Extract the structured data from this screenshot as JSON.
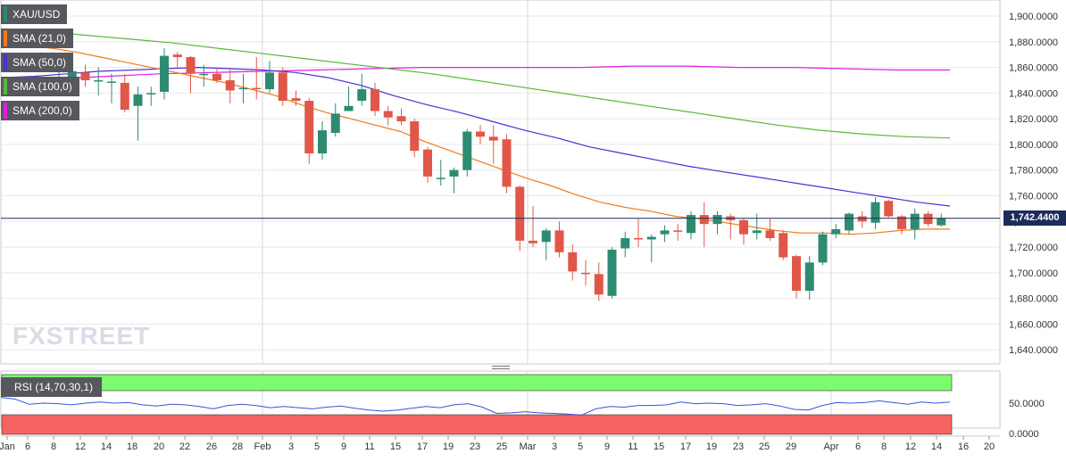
{
  "brand": {
    "logo_text": "FXSTREET"
  },
  "price_panel": {
    "y_ticks": [
      "1,900.0000",
      "1,880.0000",
      "1,860.0000",
      "1,840.0000",
      "1,820.0000",
      "1,800.0000",
      "1,780.0000",
      "1,760.0000",
      "1,740.0000",
      "1,720.0000",
      "1,700.0000",
      "1,680.0000",
      "1,660.0000",
      "1,640.0000"
    ],
    "last_price_label": "1,742.4400",
    "legend": [
      {
        "label": "XAU/USD",
        "color": "#2a8a6f"
      },
      {
        "label": "SMA (21,0)",
        "color": "#f07a1a"
      },
      {
        "label": "SMA (50,0)",
        "color": "#4b2fd6"
      },
      {
        "label": "SMA (100,0)",
        "color": "#58b83a"
      },
      {
        "label": "SMA (200,0)",
        "color": "#e020e0"
      }
    ]
  },
  "rsi_panel": {
    "label": "RSI (14,70,30,1)",
    "y_ticks": [
      "50.0000",
      "0.0000"
    ],
    "overbought_color": "#7dfb6f",
    "oversold_color": "#f86262",
    "line_color": "#3355dd"
  },
  "x_axis": {
    "ticks": [
      "Jan",
      "6",
      "8",
      "12",
      "14",
      "18",
      "20",
      "22",
      "26",
      "28",
      "Feb",
      "3",
      "5",
      "9",
      "11",
      "15",
      "17",
      "19",
      "23",
      "25",
      "Mar",
      "3",
      "5",
      "9",
      "11",
      "15",
      "17",
      "19",
      "23",
      "25",
      "29",
      "Apr",
      "6",
      "8",
      "12",
      "14",
      "16",
      "20"
    ]
  },
  "chart_data": {
    "type": "candlestick",
    "title": "XAU/USD",
    "ylim": [
      1630,
      1910
    ],
    "rsi_ylim": [
      0,
      100
    ],
    "candles": [
      {
        "o": 1851,
        "h": 1858,
        "l": 1845,
        "c": 1851
      },
      {
        "o": 1850,
        "h": 1862,
        "l": 1845,
        "c": 1857
      },
      {
        "o": 1856,
        "h": 1862,
        "l": 1845,
        "c": 1850
      },
      {
        "o": 1849,
        "h": 1860,
        "l": 1838,
        "c": 1850
      },
      {
        "o": 1848,
        "h": 1855,
        "l": 1832,
        "c": 1849
      },
      {
        "o": 1848,
        "h": 1855,
        "l": 1825,
        "c": 1827
      },
      {
        "o": 1830,
        "h": 1845,
        "l": 1803,
        "c": 1839
      },
      {
        "o": 1840,
        "h": 1845,
        "l": 1830,
        "c": 1840
      },
      {
        "o": 1841,
        "h": 1875,
        "l": 1835,
        "c": 1869
      },
      {
        "o": 1870,
        "h": 1872,
        "l": 1860,
        "c": 1868
      },
      {
        "o": 1868,
        "h": 1869,
        "l": 1840,
        "c": 1855
      },
      {
        "o": 1855,
        "h": 1862,
        "l": 1845,
        "c": 1855
      },
      {
        "o": 1855,
        "h": 1860,
        "l": 1848,
        "c": 1850
      },
      {
        "o": 1850,
        "h": 1860,
        "l": 1832,
        "c": 1842
      },
      {
        "o": 1843,
        "h": 1855,
        "l": 1832,
        "c": 1844
      },
      {
        "o": 1844,
        "h": 1868,
        "l": 1835,
        "c": 1843
      },
      {
        "o": 1843,
        "h": 1865,
        "l": 1840,
        "c": 1856
      },
      {
        "o": 1856,
        "h": 1860,
        "l": 1830,
        "c": 1834
      },
      {
        "o": 1836,
        "h": 1842,
        "l": 1830,
        "c": 1834
      },
      {
        "o": 1834,
        "h": 1836,
        "l": 1785,
        "c": 1793
      },
      {
        "o": 1793,
        "h": 1818,
        "l": 1788,
        "c": 1811
      },
      {
        "o": 1809,
        "h": 1832,
        "l": 1806,
        "c": 1824
      },
      {
        "o": 1826,
        "h": 1845,
        "l": 1826,
        "c": 1830
      },
      {
        "o": 1834,
        "h": 1855,
        "l": 1830,
        "c": 1843
      },
      {
        "o": 1843,
        "h": 1848,
        "l": 1822,
        "c": 1826
      },
      {
        "o": 1826,
        "h": 1830,
        "l": 1815,
        "c": 1821
      },
      {
        "o": 1822,
        "h": 1828,
        "l": 1815,
        "c": 1818
      },
      {
        "o": 1818,
        "h": 1820,
        "l": 1790,
        "c": 1795
      },
      {
        "o": 1796,
        "h": 1798,
        "l": 1770,
        "c": 1775
      },
      {
        "o": 1773,
        "h": 1788,
        "l": 1768,
        "c": 1774
      },
      {
        "o": 1775,
        "h": 1782,
        "l": 1762,
        "c": 1780
      },
      {
        "o": 1780,
        "h": 1812,
        "l": 1775,
        "c": 1810
      },
      {
        "o": 1810,
        "h": 1815,
        "l": 1800,
        "c": 1806
      },
      {
        "o": 1806,
        "h": 1815,
        "l": 1785,
        "c": 1803
      },
      {
        "o": 1804,
        "h": 1808,
        "l": 1762,
        "c": 1767
      },
      {
        "o": 1767,
        "h": 1768,
        "l": 1717,
        "c": 1725
      },
      {
        "o": 1725,
        "h": 1752,
        "l": 1720,
        "c": 1723
      },
      {
        "o": 1724,
        "h": 1735,
        "l": 1710,
        "c": 1733
      },
      {
        "o": 1733,
        "h": 1740,
        "l": 1712,
        "c": 1716
      },
      {
        "o": 1716,
        "h": 1722,
        "l": 1694,
        "c": 1701
      },
      {
        "o": 1700,
        "h": 1710,
        "l": 1690,
        "c": 1699
      },
      {
        "o": 1699,
        "h": 1708,
        "l": 1678,
        "c": 1683
      },
      {
        "o": 1682,
        "h": 1720,
        "l": 1680,
        "c": 1718
      },
      {
        "o": 1719,
        "h": 1732,
        "l": 1712,
        "c": 1727
      },
      {
        "o": 1727,
        "h": 1742,
        "l": 1720,
        "c": 1726
      },
      {
        "o": 1726,
        "h": 1730,
        "l": 1708,
        "c": 1728
      },
      {
        "o": 1730,
        "h": 1737,
        "l": 1724,
        "c": 1733
      },
      {
        "o": 1733,
        "h": 1738,
        "l": 1725,
        "c": 1732
      },
      {
        "o": 1731,
        "h": 1748,
        "l": 1726,
        "c": 1745
      },
      {
        "o": 1745,
        "h": 1755,
        "l": 1720,
        "c": 1738
      },
      {
        "o": 1738,
        "h": 1748,
        "l": 1730,
        "c": 1745
      },
      {
        "o": 1744,
        "h": 1746,
        "l": 1726,
        "c": 1741
      },
      {
        "o": 1741,
        "h": 1742,
        "l": 1722,
        "c": 1730
      },
      {
        "o": 1731,
        "h": 1746,
        "l": 1726,
        "c": 1733
      },
      {
        "o": 1733,
        "h": 1742,
        "l": 1725,
        "c": 1727
      },
      {
        "o": 1731,
        "h": 1733,
        "l": 1710,
        "c": 1712
      },
      {
        "o": 1713,
        "h": 1714,
        "l": 1680,
        "c": 1686
      },
      {
        "o": 1686,
        "h": 1713,
        "l": 1679,
        "c": 1708
      },
      {
        "o": 1708,
        "h": 1732,
        "l": 1706,
        "c": 1730
      },
      {
        "o": 1730,
        "h": 1738,
        "l": 1727,
        "c": 1734
      },
      {
        "o": 1733,
        "h": 1747,
        "l": 1730,
        "c": 1746
      },
      {
        "o": 1744,
        "h": 1748,
        "l": 1735,
        "c": 1740
      },
      {
        "o": 1739,
        "h": 1759,
        "l": 1734,
        "c": 1755
      },
      {
        "o": 1756,
        "h": 1757,
        "l": 1743,
        "c": 1744
      },
      {
        "o": 1744,
        "h": 1745,
        "l": 1730,
        "c": 1734
      },
      {
        "o": 1734,
        "h": 1750,
        "l": 1726,
        "c": 1746
      },
      {
        "o": 1746,
        "h": 1748,
        "l": 1736,
        "c": 1738
      },
      {
        "o": 1737,
        "h": 1746,
        "l": 1736,
        "c": 1742.44
      }
    ],
    "sma21": [
      1878,
      1877,
      1875,
      1872,
      1868,
      1864,
      1860,
      1856,
      1852,
      1848,
      1843,
      1838,
      1831,
      1825,
      1820,
      1815,
      1810,
      1802,
      1795,
      1788,
      1781,
      1774,
      1768,
      1761,
      1755,
      1751,
      1748,
      1744,
      1742,
      1739,
      1736,
      1733,
      1731,
      1731,
      1730,
      1731,
      1733,
      1734,
      1734
    ],
    "sma50": [
      1852,
      1853,
      1855,
      1857,
      1858,
      1859,
      1860,
      1859,
      1858,
      1856,
      1852,
      1846,
      1838,
      1831,
      1825,
      1818,
      1811,
      1805,
      1798,
      1793,
      1788,
      1783,
      1779,
      1775,
      1771,
      1767,
      1763,
      1759,
      1755,
      1752
    ],
    "sma100": [
      1890,
      1888,
      1885,
      1882,
      1879,
      1875,
      1871,
      1867,
      1863,
      1859,
      1855,
      1850,
      1845,
      1840,
      1835,
      1830,
      1825,
      1820,
      1815,
      1811,
      1808,
      1806,
      1805
    ],
    "sma200": [
      1848,
      1851,
      1853,
      1855,
      1856,
      1857,
      1858,
      1859,
      1860,
      1860,
      1860,
      1860,
      1861,
      1861,
      1860,
      1860,
      1859,
      1858,
      1858
    ],
    "rsi": [
      60,
      57,
      48,
      50,
      49,
      47,
      50,
      52,
      50,
      51,
      47,
      45,
      48,
      47,
      44,
      40,
      46,
      48,
      46,
      42,
      44,
      42,
      40,
      43,
      45,
      41,
      38,
      36,
      38,
      41,
      44,
      42,
      47,
      49,
      43,
      32,
      33,
      35,
      33,
      32,
      31,
      29,
      40,
      44,
      43,
      46,
      46,
      47,
      52,
      49,
      50,
      49,
      46,
      47,
      49,
      45,
      39,
      38,
      46,
      51,
      50,
      51,
      54,
      51,
      48,
      52,
      50,
      52
    ]
  }
}
